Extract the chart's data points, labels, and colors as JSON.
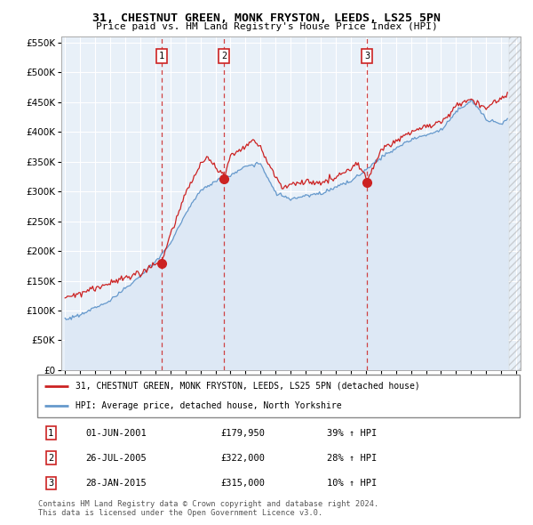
{
  "title": "31, CHESTNUT GREEN, MONK FRYSTON, LEEDS, LS25 5PN",
  "subtitle": "Price paid vs. HM Land Registry's House Price Index (HPI)",
  "ylim": [
    0,
    560000
  ],
  "yticks": [
    0,
    50000,
    100000,
    150000,
    200000,
    250000,
    300000,
    350000,
    400000,
    450000,
    500000,
    550000
  ],
  "background_color": "#ffffff",
  "chart_bg_color": "#e8f0f8",
  "grid_color": "#ffffff",
  "sale_color": "#cc2222",
  "hpi_color": "#6699cc",
  "hpi_fill_color": "#dde8f5",
  "dashed_color": "#cc2222",
  "legend_sale_label": "31, CHESTNUT GREEN, MONK FRYSTON, LEEDS, LS25 5PN (detached house)",
  "legend_hpi_label": "HPI: Average price, detached house, North Yorkshire",
  "sale_dates": [
    2001.42,
    2005.56,
    2015.07
  ],
  "sale_prices": [
    179950,
    322000,
    315000
  ],
  "sale_labels": [
    "1",
    "2",
    "3"
  ],
  "table_rows": [
    {
      "num": "1",
      "date": "01-JUN-2001",
      "price": "£179,950",
      "change": "39% ↑ HPI"
    },
    {
      "num": "2",
      "date": "26-JUL-2005",
      "price": "£322,000",
      "change": "28% ↑ HPI"
    },
    {
      "num": "3",
      "date": "28-JAN-2015",
      "price": "£315,000",
      "change": "10% ↑ HPI"
    }
  ],
  "footer": "Contains HM Land Registry data © Crown copyright and database right 2024.\nThis data is licensed under the Open Government Licence v3.0.",
  "xlim_left": 1994.75,
  "xlim_right": 2025.3
}
